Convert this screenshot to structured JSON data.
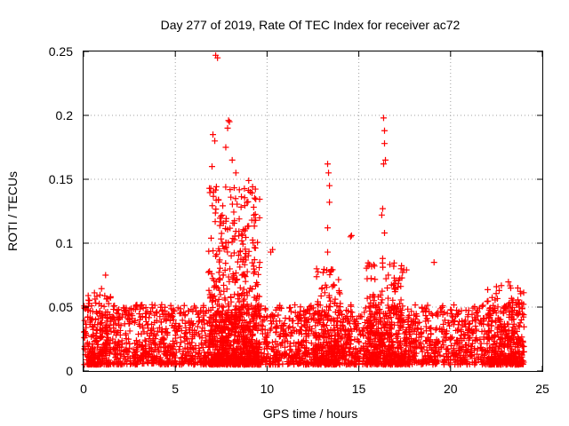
{
  "chart_data": {
    "type": "scatter",
    "title": "Day 277 of 2019, Rate Of TEC Index for receiver ac72",
    "xlabel": "GPS time / hours",
    "ylabel": "ROTI / TECUs",
    "xlim": [
      0,
      25
    ],
    "ylim": [
      0,
      0.25
    ],
    "xticks": [
      0,
      5,
      10,
      15,
      20,
      25
    ],
    "yticks": [
      0,
      0.05,
      0.1,
      0.15,
      0.2,
      0.25
    ],
    "xtick_labels": [
      "0",
      "5",
      "10",
      "15",
      "20",
      "25"
    ],
    "ytick_labels": [
      "0",
      "0.05",
      "0.1",
      "0.15",
      "0.2",
      "0.25"
    ],
    "grid": true,
    "marker": "+",
    "series_color": "#ff0000",
    "x_data_range": [
      0,
      24
    ],
    "background_level": [
      0.005,
      0.04
    ],
    "highlight_points": [
      {
        "x": 7.2,
        "y": 0.247
      },
      {
        "x": 7.3,
        "y": 0.245
      },
      {
        "x": 7.05,
        "y": 0.185
      },
      {
        "x": 7.15,
        "y": 0.18
      },
      {
        "x": 7.0,
        "y": 0.16
      },
      {
        "x": 7.9,
        "y": 0.196
      },
      {
        "x": 7.95,
        "y": 0.195
      },
      {
        "x": 7.85,
        "y": 0.19
      },
      {
        "x": 7.75,
        "y": 0.175
      },
      {
        "x": 8.1,
        "y": 0.165
      },
      {
        "x": 8.3,
        "y": 0.155
      },
      {
        "x": 9.0,
        "y": 0.149
      },
      {
        "x": 8.9,
        "y": 0.132
      },
      {
        "x": 9.3,
        "y": 0.118
      },
      {
        "x": 10.3,
        "y": 0.095
      },
      {
        "x": 10.2,
        "y": 0.093
      },
      {
        "x": 1.2,
        "y": 0.075
      },
      {
        "x": 13.3,
        "y": 0.162
      },
      {
        "x": 13.35,
        "y": 0.155
      },
      {
        "x": 13.4,
        "y": 0.145
      },
      {
        "x": 13.4,
        "y": 0.132
      },
      {
        "x": 13.3,
        "y": 0.112
      },
      {
        "x": 13.3,
        "y": 0.093
      },
      {
        "x": 16.35,
        "y": 0.198
      },
      {
        "x": 16.4,
        "y": 0.188
      },
      {
        "x": 16.4,
        "y": 0.178
      },
      {
        "x": 16.45,
        "y": 0.165
      },
      {
        "x": 16.35,
        "y": 0.162
      },
      {
        "x": 16.3,
        "y": 0.127
      },
      {
        "x": 16.25,
        "y": 0.122
      },
      {
        "x": 16.4,
        "y": 0.108
      },
      {
        "x": 16.3,
        "y": 0.088
      },
      {
        "x": 14.6,
        "y": 0.106
      },
      {
        "x": 14.55,
        "y": 0.105
      },
      {
        "x": 19.1,
        "y": 0.085
      },
      {
        "x": 12.7,
        "y": 0.08
      },
      {
        "x": 15.5,
        "y": 0.082
      },
      {
        "x": 17.3,
        "y": 0.08
      },
      {
        "x": 9.6,
        "y": 0.085
      },
      {
        "x": 13.0,
        "y": 0.065
      }
    ],
    "activity_windows": [
      {
        "x_start": 6.8,
        "x_end": 9.6,
        "y_max": 0.145
      },
      {
        "x_start": 12.6,
        "x_end": 14.0,
        "y_max": 0.08
      },
      {
        "x_start": 15.4,
        "x_end": 17.6,
        "y_max": 0.085
      },
      {
        "x_start": 0.2,
        "x_end": 1.5,
        "y_max": 0.065
      },
      {
        "x_start": 22.0,
        "x_end": 24.0,
        "y_max": 0.07
      }
    ]
  }
}
